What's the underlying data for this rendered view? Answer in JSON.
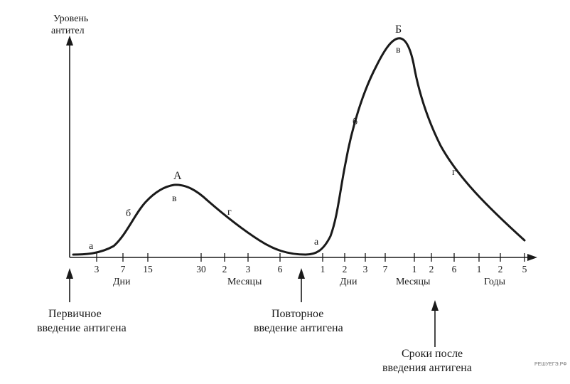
{
  "y_axis_label": [
    "Уровень",
    "антител"
  ],
  "peaks": {
    "primary": "А",
    "secondary": "Б"
  },
  "phase_letters": [
    "а",
    "б",
    "в",
    "г"
  ],
  "time_ticks": [
    "3",
    "7",
    "15",
    "30",
    "2",
    "3",
    "6",
    "1",
    "2",
    "3",
    "7",
    "1",
    "2",
    "6",
    "1",
    "2",
    "5"
  ],
  "time_units": [
    "Дни",
    "Месяцы",
    "Дни",
    "Месяцы",
    "Годы"
  ],
  "events": {
    "primary": [
      "Первичное",
      "введение антигена"
    ],
    "secondary": [
      "Повторное",
      "введение антигена"
    ],
    "x_axis_title": [
      "Сроки после",
      "введения антигена"
    ]
  },
  "watermark": "РЕШУЕГЭ.РФ"
}
